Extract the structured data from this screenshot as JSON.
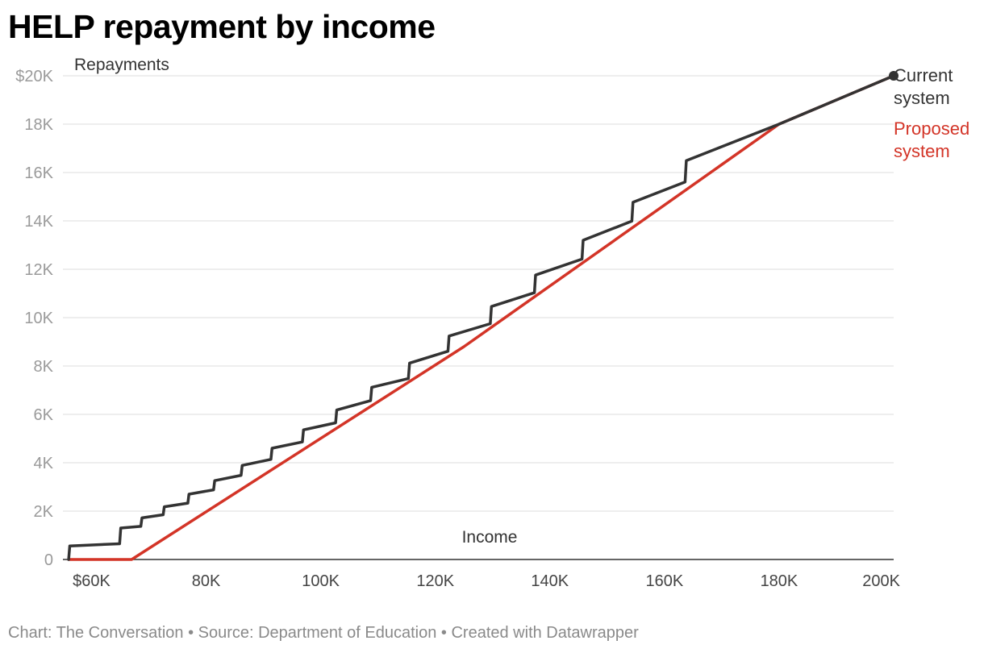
{
  "title": "HELP repayment by income",
  "footer": "Chart: The Conversation • Source: Department of Education • Created with Datawrapper",
  "colors": {
    "current": "#333333",
    "proposed": "#d33427",
    "grid": "#dddddd"
  },
  "chart_data": {
    "type": "line",
    "title": "HELP repayment by income",
    "xlabel": "Income",
    "ylabel": "Repayments",
    "xlim": [
      55000,
      200000
    ],
    "ylim": [
      0,
      20000
    ],
    "grid": true,
    "legend_placement": "right",
    "yticks": [
      {
        "value": 0,
        "label": "0"
      },
      {
        "value": 2000,
        "label": "2K"
      },
      {
        "value": 4000,
        "label": "4K"
      },
      {
        "value": 6000,
        "label": "6K"
      },
      {
        "value": 8000,
        "label": "8K"
      },
      {
        "value": 10000,
        "label": "10K"
      },
      {
        "value": 12000,
        "label": "12K"
      },
      {
        "value": 14000,
        "label": "14K"
      },
      {
        "value": 16000,
        "label": "16K"
      },
      {
        "value": 18000,
        "label": "18K"
      },
      {
        "value": 20000,
        "label": "$20K"
      }
    ],
    "xticks": [
      {
        "value": 60000,
        "label": "$60K"
      },
      {
        "value": 80000,
        "label": "80K"
      },
      {
        "value": 100000,
        "label": "100K"
      },
      {
        "value": 120000,
        "label": "120K"
      },
      {
        "value": 140000,
        "label": "140K"
      },
      {
        "value": 160000,
        "label": "160K"
      },
      {
        "value": 180000,
        "label": "180K"
      },
      {
        "value": 200000,
        "label": "200K"
      }
    ],
    "series": [
      {
        "name": "Current system",
        "label_lines": [
          "Current",
          "system"
        ],
        "x": [
          56000,
          56200,
          64900,
          65100,
          68600,
          68800,
          72500,
          72700,
          76800,
          77000,
          81300,
          81500,
          86100,
          86300,
          91300,
          91500,
          96800,
          97000,
          102600,
          102800,
          108700,
          108900,
          115300,
          115500,
          122200,
          122400,
          129600,
          129800,
          137300,
          137500,
          145600,
          145800,
          154300,
          154500,
          163600,
          163800,
          180000,
          200000
        ],
        "y": [
          0,
          560,
          650,
          1300,
          1370,
          1720,
          1850,
          2180,
          2330,
          2700,
          2880,
          3260,
          3480,
          3890,
          4140,
          4600,
          4860,
          5360,
          5650,
          6180,
          6570,
          7120,
          7480,
          8120,
          8610,
          9240,
          9750,
          10460,
          11030,
          11760,
          12420,
          13200,
          13990,
          14770,
          15610,
          16490,
          18000,
          20000
        ]
      },
      {
        "name": "Proposed system",
        "label_lines": [
          "Proposed",
          "system"
        ],
        "x": [
          56000,
          67000,
          125000,
          180000,
          200000
        ],
        "y": [
          0,
          0,
          8800,
          18000,
          20000
        ]
      }
    ]
  }
}
